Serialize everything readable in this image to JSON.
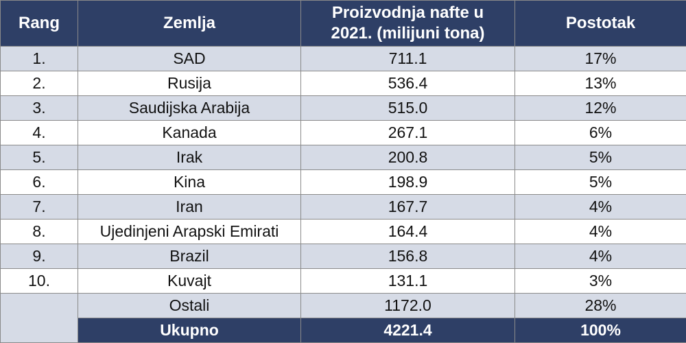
{
  "chart_data": {
    "type": "table",
    "columns": [
      "Rang",
      "Zemlja",
      "Proizvodnja nafte u 2021. (milijuni tona)",
      "Postotak"
    ],
    "header_lines": {
      "production": [
        "Proizvodnja nafte u",
        "2021. (milijuni tona)"
      ]
    },
    "rows": [
      {
        "rank": "1.",
        "country": "SAD",
        "production": "711.1",
        "percent": "17%"
      },
      {
        "rank": "2.",
        "country": "Rusija",
        "production": "536.4",
        "percent": "13%"
      },
      {
        "rank": "3.",
        "country": "Saudijska Arabija",
        "production": "515.0",
        "percent": "12%"
      },
      {
        "rank": "4.",
        "country": "Kanada",
        "production": "267.1",
        "percent": "6%"
      },
      {
        "rank": "5.",
        "country": "Irak",
        "production": "200.8",
        "percent": "5%"
      },
      {
        "rank": "6.",
        "country": "Kina",
        "production": "198.9",
        "percent": "5%"
      },
      {
        "rank": "7.",
        "country": "Iran",
        "production": "167.7",
        "percent": "4%"
      },
      {
        "rank": "8.",
        "country": "Ujedinjeni Arapski Emirati",
        "production": "164.4",
        "percent": "4%"
      },
      {
        "rank": "9.",
        "country": "Brazil",
        "production": "156.8",
        "percent": "4%"
      },
      {
        "rank": "10.",
        "country": "Kuvajt",
        "production": "131.1",
        "percent": "3%"
      }
    ],
    "others": {
      "country": "Ostali",
      "production": "1172.0",
      "percent": "28%"
    },
    "total": {
      "country": "Ukupno",
      "production": "4221.4",
      "percent": "100%"
    }
  },
  "colors": {
    "header_bg": "#2e3f66",
    "header_text": "#ffffff",
    "stripe": "#d6dbe6",
    "row_bg": "#ffffff",
    "border": "#8a8a8a"
  }
}
